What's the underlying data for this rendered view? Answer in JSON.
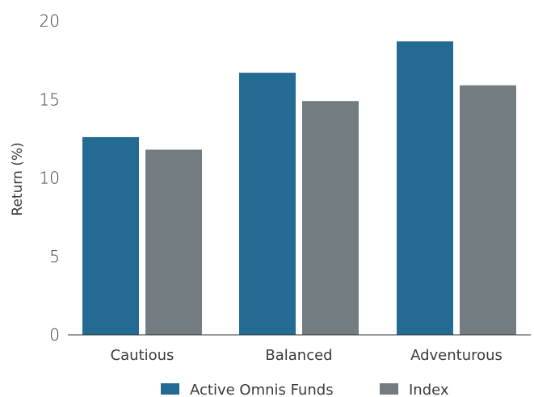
{
  "chart_data": {
    "type": "bar",
    "title": "",
    "xlabel": "",
    "ylabel": "Return (%)",
    "categories": [
      "Cautious",
      "Balanced",
      "Adventurous"
    ],
    "series": [
      {
        "name": "Active Omnis Funds",
        "values": [
          12.6,
          16.7,
          18.7
        ],
        "color": "#236b93"
      },
      {
        "name": "Index",
        "values": [
          11.8,
          14.9,
          15.9
        ],
        "color": "#737d81"
      }
    ],
    "ylim": [
      0,
      20
    ],
    "yticks": [
      "0",
      "5",
      "10",
      "15",
      "20"
    ],
    "grid": false,
    "legend_position": "bottom"
  }
}
